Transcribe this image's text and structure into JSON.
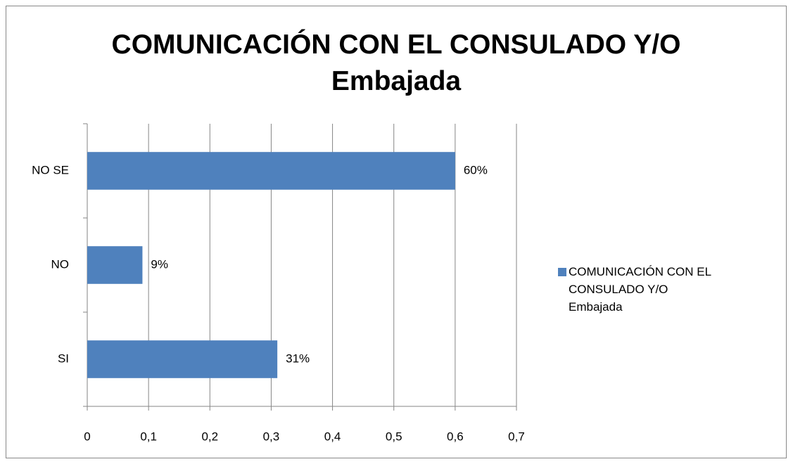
{
  "chart_data": {
    "type": "bar",
    "orientation": "horizontal",
    "title": "COMUNICACIÓN CON EL CONSULADO Y/O Embajada",
    "categories": [
      "SI",
      "NO",
      "NO SE"
    ],
    "series": [
      {
        "name": "COMUNICACIÓN CON EL CONSULADO Y/O Embajada",
        "color": "#4f81bd",
        "values": [
          0.31,
          0.09,
          0.6
        ],
        "value_labels": [
          "31%",
          "9%",
          "60%"
        ]
      }
    ],
    "xlim": [
      0,
      0.7
    ],
    "xticks": [
      0,
      {
        "value": 0.1,
        "label": "0,1"
      },
      {
        "value": 0.2,
        "label": "0,2"
      },
      {
        "value": 0.3,
        "label": "0,3"
      },
      {
        "value": 0.4,
        "label": "0,4"
      },
      {
        "value": 0.5,
        "label": "0,5"
      },
      {
        "value": 0.6,
        "label": "0,6"
      },
      {
        "value": 0.7,
        "label": "0,7"
      }
    ],
    "grid": true,
    "legend": "right"
  }
}
